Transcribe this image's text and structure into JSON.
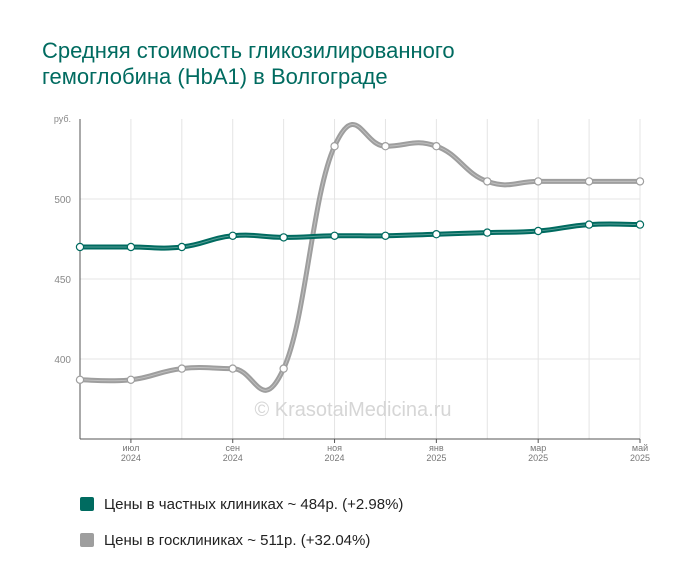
{
  "title": {
    "line1": "Средняя стоимость гликозилированного",
    "line2": "гемоглобина (HbA1) в Волгограде"
  },
  "watermark": "© KrasotaiMedicina.ru",
  "chart_data": {
    "type": "line",
    "x_count": 12,
    "x_ticks": [
      {
        "index": 1,
        "month": "июл",
        "year": "2024"
      },
      {
        "index": 3,
        "month": "сен",
        "year": "2024"
      },
      {
        "index": 5,
        "month": "ноя",
        "year": "2024"
      },
      {
        "index": 7,
        "month": "янв",
        "year": "2025"
      },
      {
        "index": 9,
        "month": "мар",
        "year": "2025"
      },
      {
        "index": 11,
        "month": "май",
        "year": "2025"
      }
    ],
    "y_unit": "руб.",
    "y_ticks": [
      400,
      450,
      500
    ],
    "ylim": [
      350,
      550
    ],
    "grid": true,
    "series": [
      {
        "name": "Цены в госклиниках",
        "color": "#9e9e9e",
        "values": [
          387,
          387,
          394,
          394,
          394,
          533,
          533,
          533,
          511,
          511,
          511,
          511
        ]
      },
      {
        "name": "Цены в частных клиниках",
        "color": "#006b60",
        "values": [
          470,
          470,
          470,
          477,
          476,
          477,
          477,
          478,
          479,
          480,
          484,
          484
        ]
      }
    ]
  },
  "legend": [
    {
      "label": "Цены в частных клиниках ~ 484р. (+2.98%)",
      "color": "#006b60"
    },
    {
      "label": "Цены в госклиниках ~ 511р. (+32.04%)",
      "color": "#9e9e9e"
    }
  ]
}
